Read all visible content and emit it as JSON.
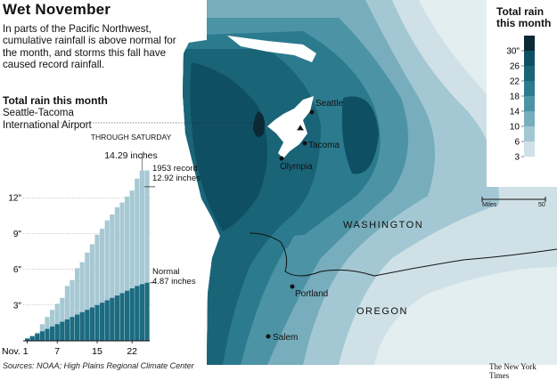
{
  "header": {
    "title": "Wet November",
    "intro": "In parts of the Pacific Northwest, cumulative rainfall is above normal for the month, and storms this fall have caused record rainfall."
  },
  "chart": {
    "title": "Total rain this month",
    "station": "Seattle-Tacoma International Airport",
    "through_label": "THROUGH SATURDAY",
    "through_value": "14.29 inches",
    "record_label": "1953 record",
    "record_value": "12.92 inches",
    "normal_label": "Normal",
    "normal_value": "4.87 inches"
  },
  "chart_data": {
    "type": "bar",
    "title": "Total rain this month",
    "ylabel": "",
    "xlabel": "",
    "ylim": [
      0,
      15
    ],
    "yticks": [
      "3\"",
      "6\"",
      "9\"",
      "12\""
    ],
    "xticks": [
      "Nov. 1",
      "7",
      "15",
      "22"
    ],
    "categories": [
      1,
      2,
      3,
      4,
      5,
      6,
      7,
      8,
      9,
      10,
      11,
      12,
      13,
      14,
      15,
      16,
      17,
      18,
      19,
      20,
      21,
      22,
      23,
      24,
      25
    ],
    "series": [
      {
        "name": "Observed",
        "values": [
          0.1,
          0.3,
          0.7,
          1.4,
          2.0,
          2.6,
          3.1,
          3.6,
          4.6,
          5.1,
          6.1,
          6.6,
          7.4,
          8.1,
          8.9,
          9.4,
          10.1,
          10.6,
          11.2,
          11.6,
          12.1,
          12.6,
          13.6,
          14.29,
          14.29
        ]
      },
      {
        "name": "Normal",
        "values": [
          0.2,
          0.4,
          0.6,
          0.8,
          1.0,
          1.2,
          1.4,
          1.6,
          1.8,
          2.0,
          2.2,
          2.4,
          2.6,
          2.8,
          3.0,
          3.2,
          3.4,
          3.6,
          3.8,
          4.0,
          4.2,
          4.4,
          4.6,
          4.75,
          4.87
        ]
      }
    ],
    "reference_lines": [
      {
        "label": "1953 record",
        "value": 12.92
      }
    ]
  },
  "legend": {
    "title": "Total rain this month",
    "labels": [
      "30\"",
      "26",
      "22",
      "18",
      "14",
      "10",
      "6",
      "3"
    ],
    "colors": [
      "#0b2a36",
      "#0f4f63",
      "#1a6478",
      "#2c7a8e",
      "#4b93a5",
      "#77adbc",
      "#a3c8d3",
      "#cfe1e7"
    ]
  },
  "map": {
    "cities": [
      "Seattle",
      "Tacoma",
      "Olympia",
      "Portland",
      "Salem"
    ],
    "states": [
      "WASHINGTON",
      "OREGON"
    ],
    "scale_label": "Miles",
    "scale_value": "50"
  },
  "footer": {
    "sources": "Sources: NOAA; High Plains Regional Climate Center",
    "credit": "The New York Times"
  }
}
